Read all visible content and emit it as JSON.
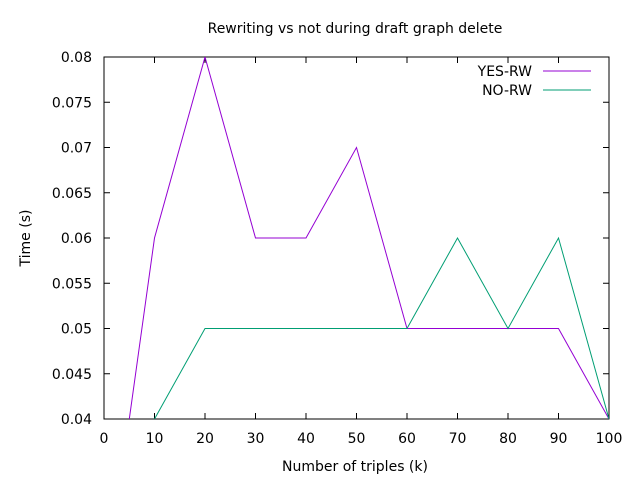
{
  "chart_data": {
    "type": "line",
    "title": "Rewriting vs not during draft graph delete",
    "xlabel": "Number of triples (k)",
    "ylabel": "Time (s)",
    "xlim": [
      0,
      100
    ],
    "ylim": [
      0.04,
      0.08
    ],
    "xticks": [
      0,
      10,
      20,
      30,
      40,
      50,
      60,
      70,
      80,
      90,
      100
    ],
    "yticks": [
      0.04,
      0.045,
      0.05,
      0.055,
      0.06,
      0.065,
      0.07,
      0.075,
      0.08
    ],
    "xtick_labels": [
      "0",
      "10",
      "20",
      "30",
      "40",
      "50",
      "60",
      "70",
      "80",
      "90",
      "100"
    ],
    "ytick_labels": [
      "0.04",
      "0.045",
      "0.05",
      "0.055",
      "0.06",
      "0.065",
      "0.07",
      "0.075",
      "0.08"
    ],
    "grid": false,
    "legend_position": "top-right",
    "series": [
      {
        "name": "YES-RW",
        "color": "#9400d3",
        "x": [
          5,
          10,
          20,
          30,
          40,
          50,
          60,
          70,
          80,
          90,
          100
        ],
        "y": [
          0.04,
          0.06,
          0.08,
          0.06,
          0.06,
          0.07,
          0.05,
          0.05,
          0.05,
          0.05,
          0.04
        ]
      },
      {
        "name": "NO-RW",
        "color": "#009e73",
        "x": [
          10,
          20,
          30,
          40,
          50,
          60,
          70,
          80,
          90,
          100
        ],
        "y": [
          0.04,
          0.05,
          0.05,
          0.05,
          0.05,
          0.05,
          0.06,
          0.05,
          0.06,
          0.04
        ]
      }
    ]
  }
}
